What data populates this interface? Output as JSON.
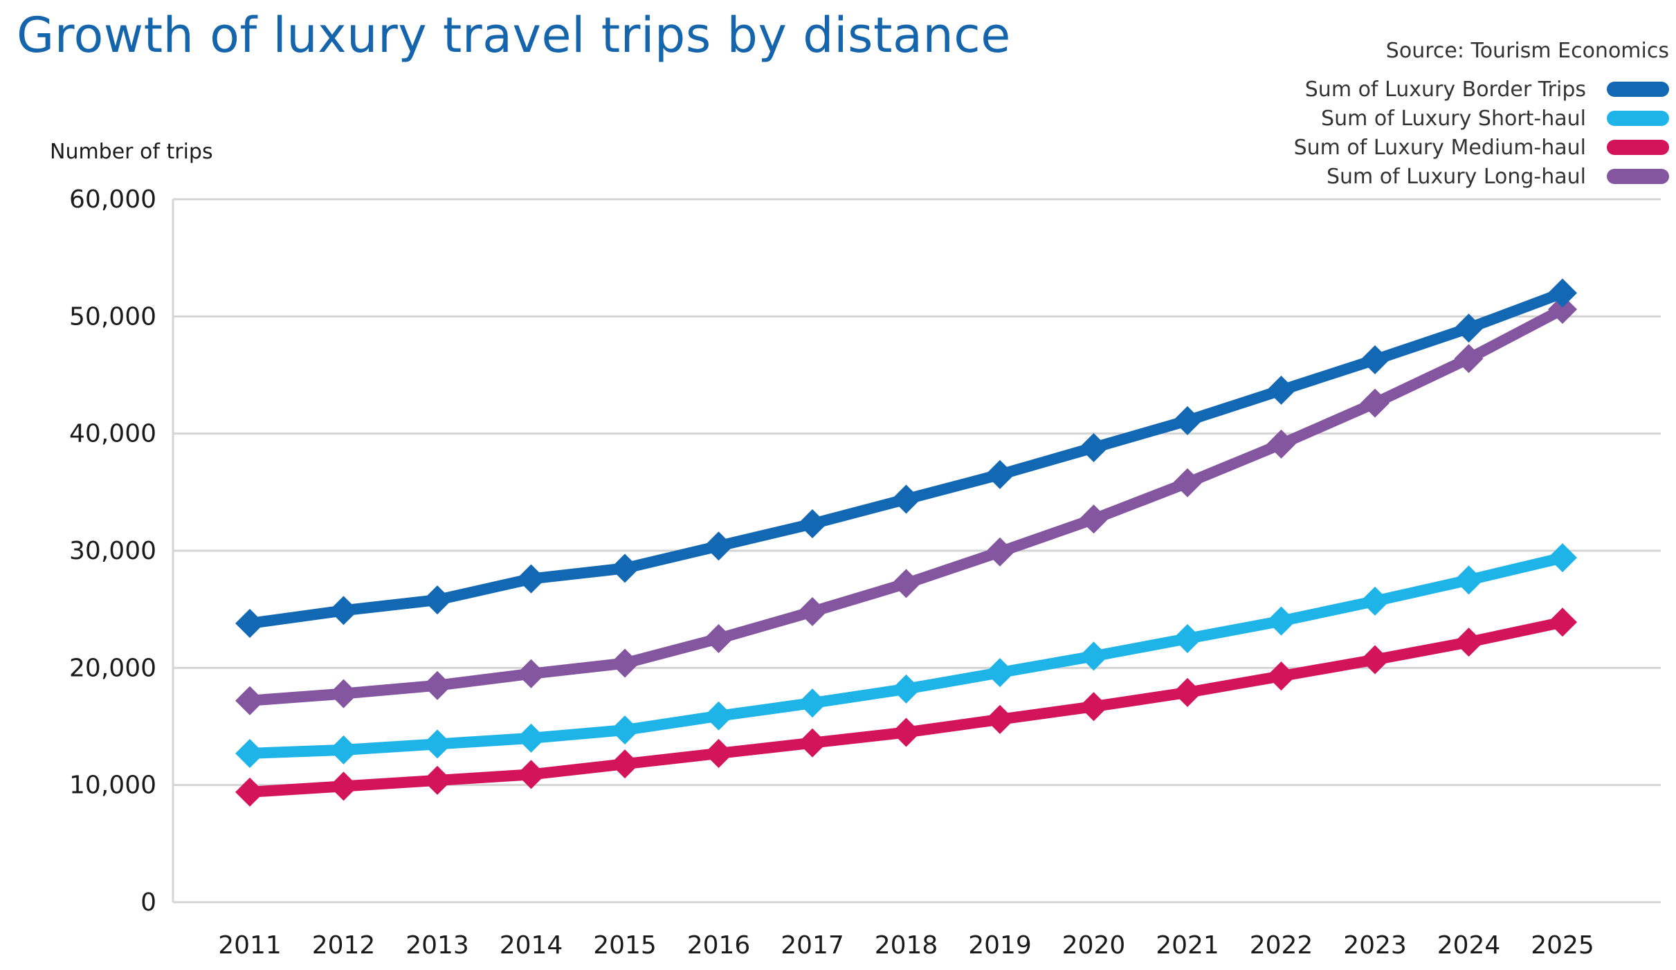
{
  "header": {
    "title": "Growth of luxury travel trips by distance",
    "source": "Source: Tourism Economics"
  },
  "chart_data": {
    "type": "line",
    "title": "Growth of luxury travel trips by distance",
    "ylabel": "Number of trips",
    "xlabel": "",
    "ylim": [
      0,
      60000
    ],
    "yticks": [
      0,
      10000,
      20000,
      30000,
      40000,
      50000,
      60000
    ],
    "ytick_labels": [
      "0",
      "10,000",
      "20,000",
      "30,000",
      "40,000",
      "50,000",
      "60,000"
    ],
    "grid": true,
    "legend_position": "top-right",
    "marker": "diamond",
    "categories": [
      "2011",
      "2012",
      "2013",
      "2014",
      "2015",
      "2016",
      "2017",
      "2018",
      "2019",
      "2020",
      "2021",
      "2022",
      "2023",
      "2024",
      "2025"
    ],
    "series": [
      {
        "name": "Sum of Luxury Border Trips",
        "color": "#1268b3",
        "values": [
          23800,
          24900,
          25800,
          27600,
          28500,
          30400,
          32300,
          34400,
          36500,
          38800,
          41100,
          43700,
          46300,
          49000,
          52000
        ]
      },
      {
        "name": "Sum of Luxury Short-haul",
        "color": "#1eb4e8",
        "values": [
          12700,
          13000,
          13500,
          14000,
          14700,
          15900,
          17000,
          18200,
          19600,
          21000,
          22500,
          24000,
          25700,
          27500,
          29400
        ]
      },
      {
        "name": "Sum of Luxury Medium-haul",
        "color": "#d4145a",
        "values": [
          9400,
          9900,
          10400,
          10900,
          11800,
          12700,
          13600,
          14500,
          15600,
          16700,
          17900,
          19300,
          20700,
          22200,
          23900
        ]
      },
      {
        "name": "Sum of Luxury Long-haul",
        "color": "#8456a0",
        "values": [
          17200,
          17800,
          18500,
          19500,
          20400,
          22500,
          24800,
          27200,
          29900,
          32700,
          35800,
          39100,
          42600,
          46400,
          50600
        ]
      }
    ]
  }
}
